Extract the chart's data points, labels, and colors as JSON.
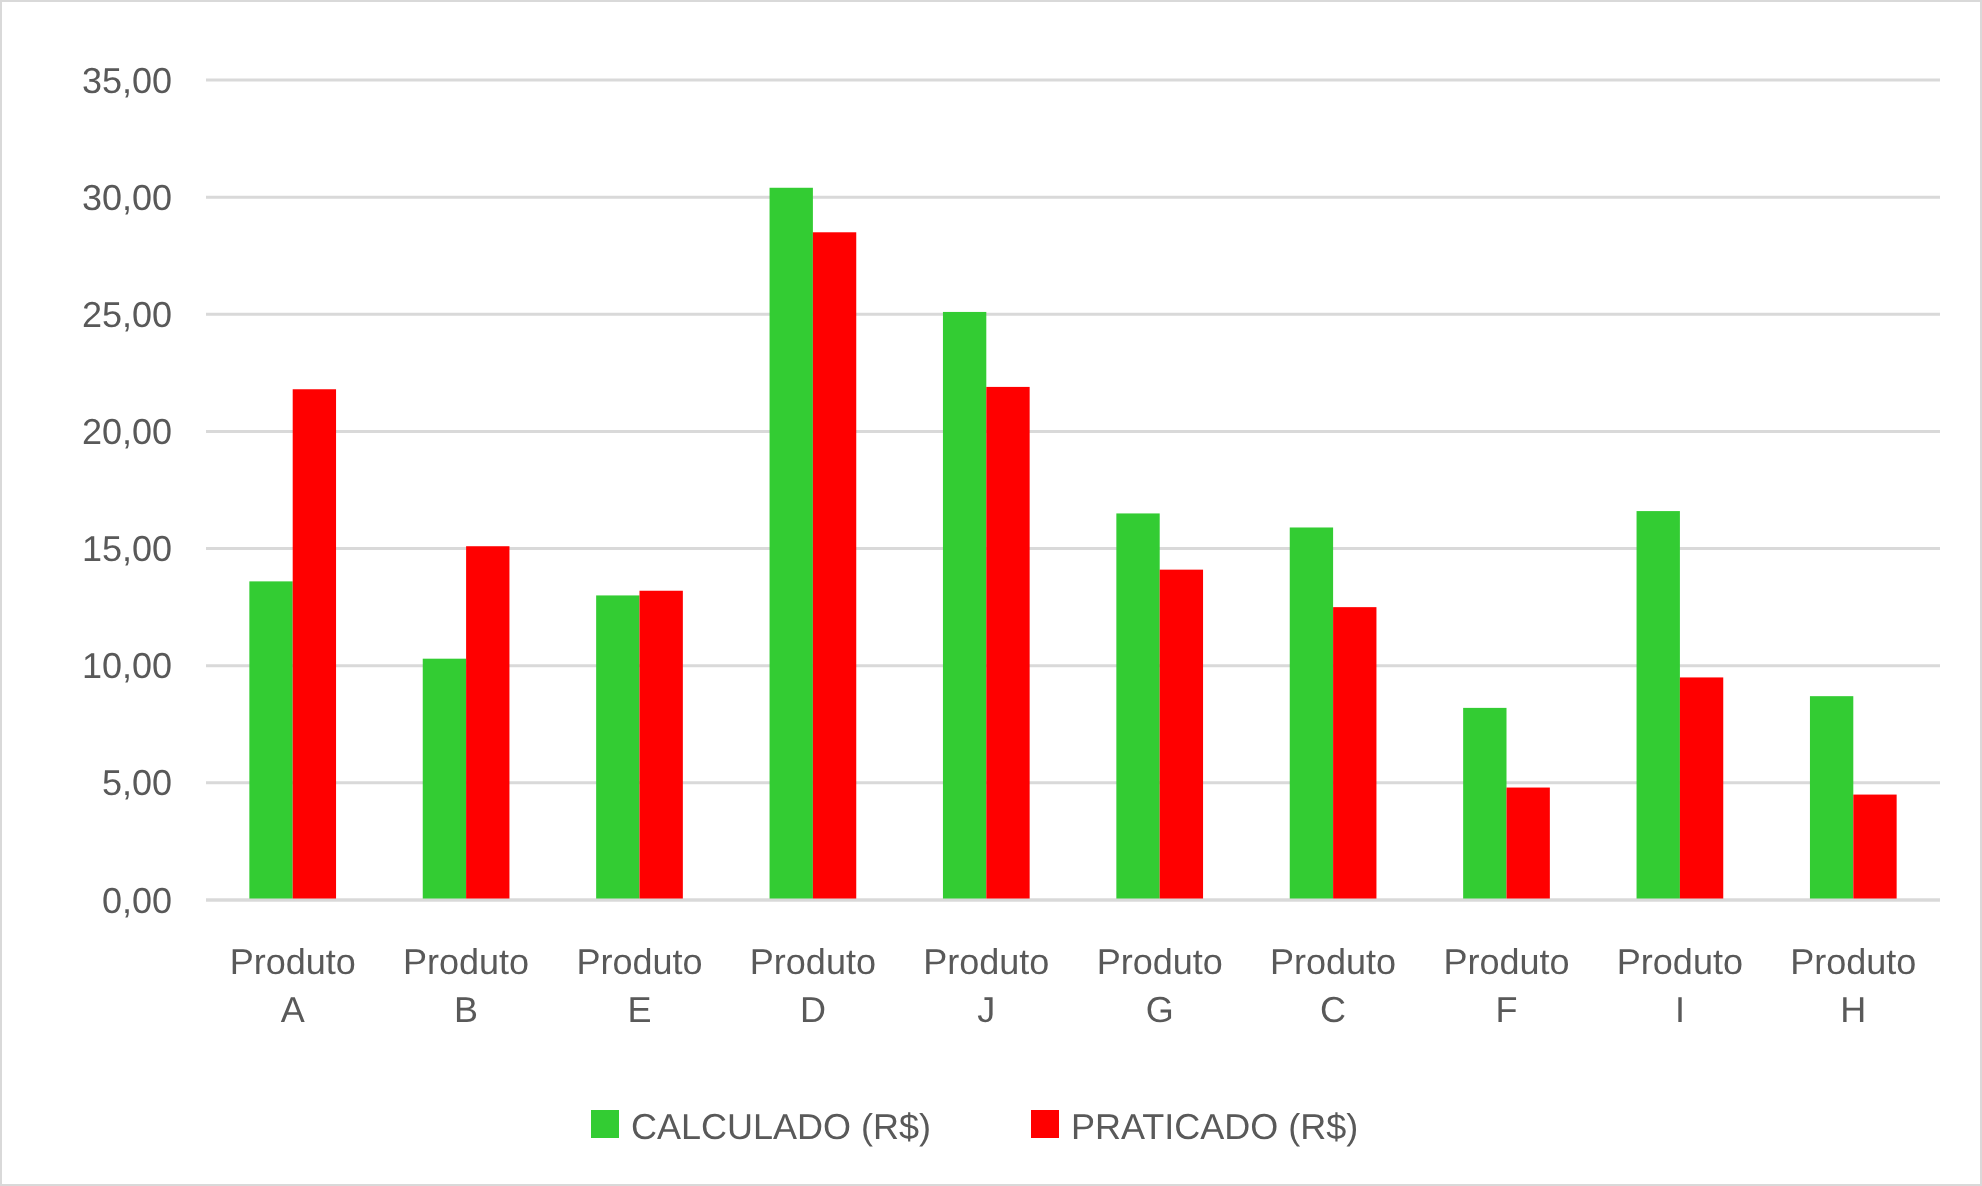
{
  "chart_data": {
    "type": "bar",
    "categories": [
      "Produto A",
      "Produto B",
      "Produto E",
      "Produto D",
      "Produto J",
      "Produto G",
      "Produto C",
      "Produto F",
      "Produto I",
      "Produto H"
    ],
    "series": [
      {
        "name": "CALCULADO (R$)",
        "color": "#33cc33",
        "values": [
          13.6,
          10.3,
          13.0,
          30.4,
          25.1,
          16.5,
          15.9,
          8.2,
          16.6,
          8.7
        ]
      },
      {
        "name": "PRATICADO (R$)",
        "color": "#ff0000",
        "values": [
          21.8,
          15.1,
          13.2,
          28.5,
          21.9,
          14.1,
          12.5,
          4.8,
          9.5,
          4.5
        ]
      }
    ],
    "ylim": [
      0,
      35
    ],
    "yticks": [
      {
        "value": 0,
        "label": "0,00"
      },
      {
        "value": 5,
        "label": "5,00"
      },
      {
        "value": 10,
        "label": "10,00"
      },
      {
        "value": 15,
        "label": "15,00"
      },
      {
        "value": 20,
        "label": "20,00"
      },
      {
        "value": 25,
        "label": "25,00"
      },
      {
        "value": 30,
        "label": "30,00"
      },
      {
        "value": 35,
        "label": "35,00"
      }
    ],
    "grid": "y",
    "legend": "bottom"
  }
}
